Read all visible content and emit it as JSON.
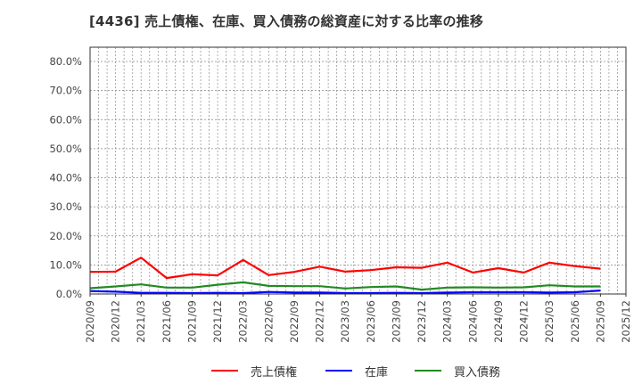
{
  "title": "[4436]  売上債権、在庫、買入債務の総資産に対する比率の推移",
  "chart_data": {
    "type": "line",
    "title": "[4436]  売上債権、在庫、買入債務の総資産に対する比率の推移",
    "xlabel": "",
    "ylabel": "",
    "ylim": [
      0,
      85
    ],
    "grid": true,
    "legend_position": "bottom",
    "yticks": [
      "0.0%",
      "10.0%",
      "20.0%",
      "30.0%",
      "40.0%",
      "50.0%",
      "60.0%",
      "70.0%",
      "80.0%"
    ],
    "ytick_values": [
      0,
      10,
      20,
      30,
      40,
      50,
      60,
      70,
      80
    ],
    "categories": [
      "2020/09",
      "2020/12",
      "2021/03",
      "2021/06",
      "2021/09",
      "2021/12",
      "2022/03",
      "2022/06",
      "2022/09",
      "2022/12",
      "2023/03",
      "2023/06",
      "2023/09",
      "2023/12",
      "2024/03",
      "2024/06",
      "2024/09",
      "2024/12",
      "2025/03",
      "2025/06",
      "2025/09",
      "2025/12"
    ],
    "series": [
      {
        "name": "売上債権",
        "color": "#ff0000",
        "values": [
          7.6,
          7.7,
          12.5,
          5.5,
          6.8,
          6.4,
          11.7,
          6.5,
          7.6,
          9.4,
          7.7,
          8.2,
          9.2,
          9.0,
          10.8,
          7.4,
          8.9,
          7.4,
          10.8,
          9.6,
          8.7,
          null
        ]
      },
      {
        "name": "在庫",
        "color": "#0000ff",
        "values": [
          1.0,
          0.8,
          0.4,
          0.4,
          0.3,
          0.4,
          0.3,
          0.7,
          0.5,
          0.5,
          0.3,
          0.3,
          0.4,
          0.3,
          0.5,
          0.6,
          0.6,
          0.6,
          0.5,
          0.6,
          1.2,
          null
        ]
      },
      {
        "name": "買入債務",
        "color": "#228b22",
        "values": [
          2.0,
          2.6,
          3.3,
          2.2,
          2.2,
          3.2,
          4.0,
          2.8,
          2.7,
          2.7,
          1.9,
          2.4,
          2.6,
          1.5,
          2.2,
          2.3,
          2.2,
          2.3,
          3.0,
          2.6,
          2.6,
          null
        ]
      }
    ]
  },
  "legend": [
    {
      "label": "売上債権",
      "color": "#ff0000"
    },
    {
      "label": "在庫",
      "color": "#0000ff"
    },
    {
      "label": "買入債務",
      "color": "#228b22"
    }
  ]
}
